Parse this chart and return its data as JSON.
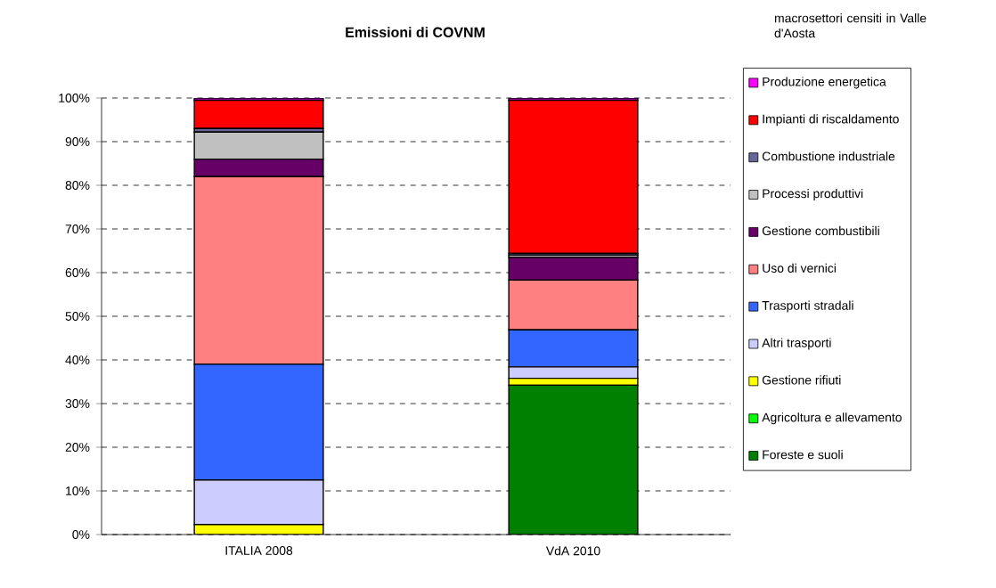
{
  "chart_data": {
    "type": "bar",
    "title": "Emissioni di COVNM",
    "legend_title": "macrosettori censiti in Valle d'Aosta",
    "categories": [
      "ITALIA 2008",
      "VdA 2010"
    ],
    "stacked": true,
    "grid": "y",
    "legend": "right",
    "ylim": [
      0,
      100
    ],
    "yticks": [
      {
        "value": 0,
        "label": "0%"
      },
      {
        "value": 10,
        "label": "10%"
      },
      {
        "value": 20,
        "label": "20%"
      },
      {
        "value": 30,
        "label": "30%"
      },
      {
        "value": 40,
        "label": "40%"
      },
      {
        "value": 50,
        "label": "50%"
      },
      {
        "value": 60,
        "label": "60%"
      },
      {
        "value": 70,
        "label": "70%"
      },
      {
        "value": 80,
        "label": "80%"
      },
      {
        "value": 90,
        "label": "90%"
      },
      {
        "value": 100,
        "label": "100%"
      }
    ],
    "series": [
      {
        "name": "Foreste e suoli",
        "color": "#008000",
        "values": [
          0,
          34.2
        ]
      },
      {
        "name": "Agricoltura e allevamento",
        "color": "#00ff00",
        "values": [
          0,
          0
        ]
      },
      {
        "name": "Gestione rifiuti",
        "color": "#ffff00",
        "values": [
          2.3,
          1.6
        ]
      },
      {
        "name": "Altri trasporti",
        "color": "#ccccff",
        "values": [
          10.2,
          2.6
        ]
      },
      {
        "name": "Trasporti stradali",
        "color": "#3366ff",
        "values": [
          26.5,
          8.5
        ]
      },
      {
        "name": "Uso di vernici",
        "color": "#ff8080",
        "values": [
          43,
          11.4
        ]
      },
      {
        "name": "Gestione combustibili",
        "color": "#660066",
        "values": [
          4,
          5.2
        ]
      },
      {
        "name": "Processi produttivi",
        "color": "#c0c0c0",
        "values": [
          6.2,
          0.5
        ]
      },
      {
        "name": "Combustione industriale",
        "color": "#666699",
        "values": [
          0.8,
          0.4
        ]
      },
      {
        "name": "Impianti di riscaldamento",
        "color": "#ff0000",
        "values": [
          6.5,
          35.1
        ]
      },
      {
        "name": "Produzione energetica",
        "color": "#ff00ff",
        "values": [
          0.5,
          0.5
        ]
      }
    ]
  }
}
